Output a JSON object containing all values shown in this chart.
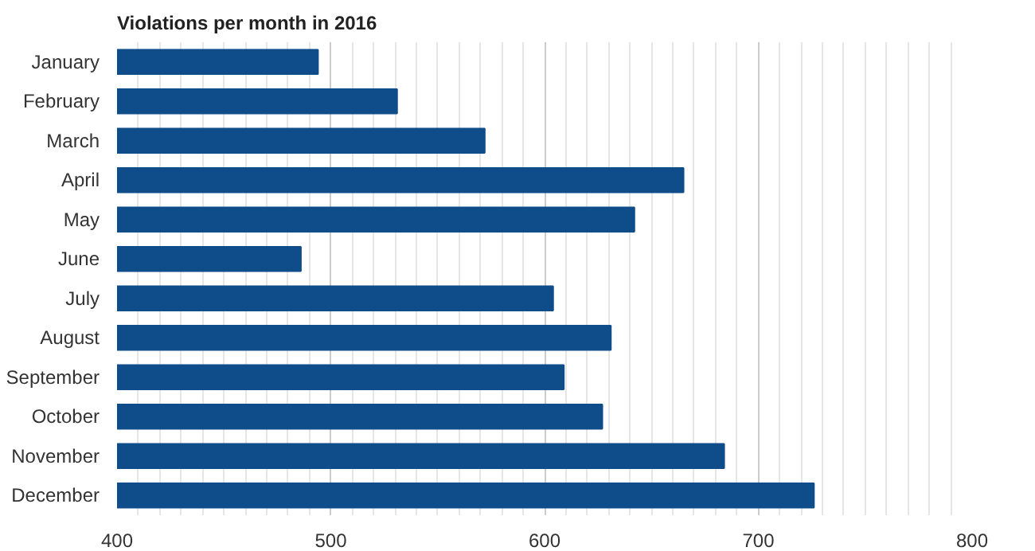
{
  "chart_data": {
    "type": "bar",
    "orientation": "horizontal",
    "title": "Violations per month in 2016",
    "categories": [
      "January",
      "February",
      "March",
      "April",
      "May",
      "June",
      "July",
      "August",
      "September",
      "October",
      "November",
      "December"
    ],
    "values": [
      494,
      531,
      572,
      665,
      642,
      486,
      604,
      631,
      609,
      627,
      684,
      726
    ],
    "color": "#0f4c8a",
    "xlim": [
      400,
      800
    ],
    "xticks": [
      400,
      500,
      600,
      700,
      800
    ],
    "grid": "x"
  }
}
